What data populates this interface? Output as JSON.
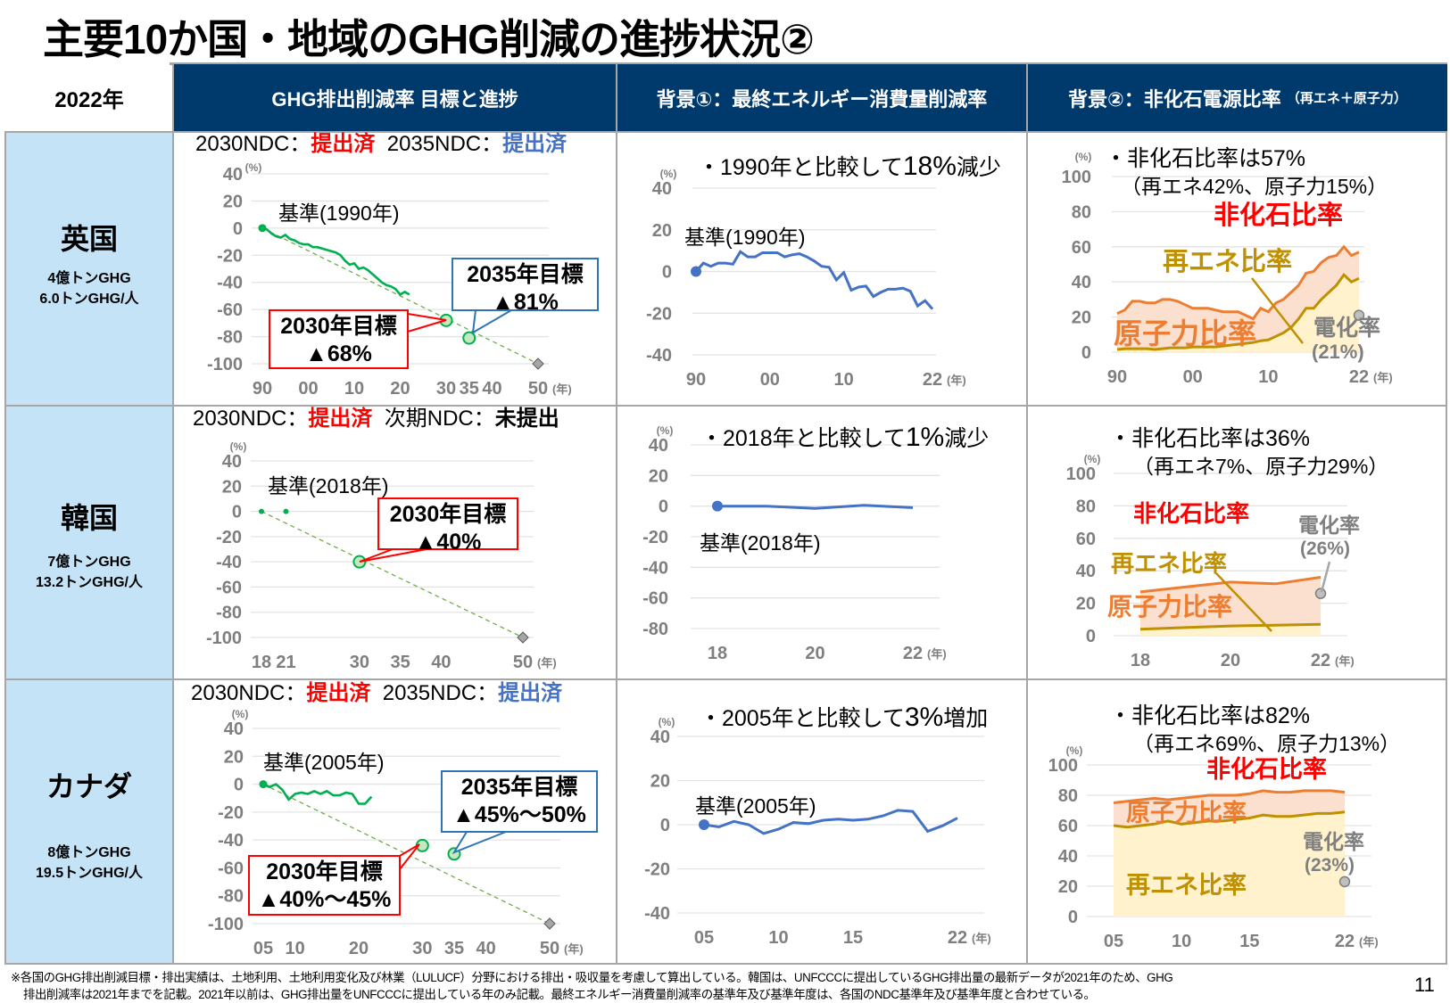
{
  "title": "主要10か国・地域のGHG削減の進捗状況②",
  "header": {
    "year": "2022年",
    "col_ghg": "GHG排出削減率 目標と進捗",
    "col_energy": "背景①：最終エネルギー消費量削減率",
    "col_power": "背景②：非化石電源比率",
    "col_power_note": "（再エネ＋原子力）"
  },
  "countries": [
    {
      "name": "英国",
      "emissions": "4億トンGHG",
      "per_capita": "6.0トンGHG/人",
      "ndc": {
        "label1": "2030NDC：",
        "status1": "提出済",
        "label2": "2035NDC：",
        "status2": "提出済"
      }
    },
    {
      "name": "韓国",
      "emissions": "7億トンGHG",
      "per_capita": "13.2トンGHG/人",
      "ndc": {
        "label1": "2030NDC：",
        "status1": "提出済",
        "label2": "次期NDC：",
        "status2": "未提出"
      }
    },
    {
      "name": "カナダ",
      "emissions": "8億トンGHG",
      "per_capita": "19.5トンGHG/人",
      "ndc": {
        "label1": "2030NDC：",
        "status1": "提出済",
        "label2": "2035NDC：",
        "status2": "提出済"
      }
    }
  ],
  "colors": {
    "header": "#003a6c",
    "country_bg": "#c5e3f7",
    "ghg_line": "#00b050",
    "energy_line": "#4472c4",
    "nonfossil": "#ed7d31",
    "renewable": "#bf9000",
    "nonfossil_label": "#ff0000",
    "status_submitted_2030": "#ff0000",
    "status_submitted_2035": "#4472c4"
  },
  "chart_data": [
    {
      "id": "uk_ghg",
      "type": "line",
      "ylabel": "(%)",
      "x_unit": "(年)",
      "xlim": [
        1990,
        2050
      ],
      "ylim": [
        -100,
        40
      ],
      "yticks": [
        40,
        20,
        0,
        -20,
        -40,
        -60,
        -80,
        -100
      ],
      "x_ticks": [
        [
          1990,
          "90"
        ],
        [
          2000,
          "00"
        ],
        [
          2010,
          "10"
        ],
        [
          2020,
          "20"
        ],
        [
          2030,
          "30"
        ],
        [
          2035,
          "35"
        ],
        [
          2040,
          "40"
        ],
        [
          2050,
          "50"
        ]
      ],
      "baseline_label": "基準(1990年)",
      "series": [
        {
          "mode": "line",
          "values": [
            [
              1990,
              0
            ],
            [
              1991,
              -1
            ],
            [
              1992,
              -4
            ],
            [
              1993,
              -6
            ],
            [
              1994,
              -7
            ],
            [
              1995,
              -5
            ],
            [
              1996,
              -8
            ],
            [
              1997,
              -9
            ],
            [
              1998,
              -11
            ],
            [
              1999,
              -12
            ],
            [
              2000,
              -12
            ],
            [
              2001,
              -14
            ],
            [
              2002,
              -14
            ],
            [
              2003,
              -15
            ],
            [
              2004,
              -16
            ],
            [
              2005,
              -17
            ],
            [
              2006,
              -18
            ],
            [
              2007,
              -20
            ],
            [
              2008,
              -24
            ],
            [
              2009,
              -27
            ],
            [
              2010,
              -26
            ],
            [
              2011,
              -30
            ],
            [
              2012,
              -29
            ],
            [
              2013,
              -31
            ],
            [
              2014,
              -34
            ],
            [
              2015,
              -37
            ],
            [
              2016,
              -40
            ],
            [
              2017,
              -42
            ],
            [
              2018,
              -43
            ],
            [
              2019,
              -45
            ],
            [
              2020,
              -49
            ],
            [
              2021,
              -47
            ],
            [
              2022,
              -49
            ]
          ]
        }
      ],
      "pathway": [
        [
          1990,
          0
        ],
        [
          2050,
          -100
        ]
      ],
      "targets": [
        {
          "year": 2030,
          "value": -68,
          "label_title": "2030年目標",
          "label_value": "▲68%"
        },
        {
          "year": 2035,
          "value": -81,
          "label_title": "2035年目標",
          "label_value": "▲81%"
        }
      ],
      "endpoint": [
        2050,
        -100
      ]
    },
    {
      "id": "kr_ghg",
      "type": "line",
      "ylabel": "(%)",
      "x_unit": "(年)",
      "xlim": [
        2018,
        2050
      ],
      "ylim": [
        -100,
        40
      ],
      "yticks": [
        40,
        20,
        0,
        -20,
        -40,
        -60,
        -80,
        -100
      ],
      "x_ticks": [
        [
          2018,
          "18"
        ],
        [
          2021,
          "21"
        ],
        [
          2030,
          "30"
        ],
        [
          2035,
          "35"
        ],
        [
          2040,
          "40"
        ],
        [
          2050,
          "50"
        ]
      ],
      "baseline_label": "基準(2018年)",
      "series": [
        {
          "mode": "points",
          "values": [
            [
              2018,
              0
            ],
            [
              2021,
              0
            ]
          ]
        }
      ],
      "pathway": [
        [
          2018,
          0
        ],
        [
          2050,
          -100
        ]
      ],
      "targets": [
        {
          "year": 2030,
          "value": -40,
          "label_title": "2030年目標",
          "label_value": "▲40%"
        }
      ],
      "endpoint": [
        2050,
        -100
      ]
    },
    {
      "id": "ca_ghg",
      "type": "line",
      "ylabel": "(%)",
      "x_unit": "(年)",
      "xlim": [
        2005,
        2050
      ],
      "ylim": [
        -100,
        40
      ],
      "yticks": [
        40,
        20,
        0,
        -20,
        -40,
        -60,
        -80,
        -100
      ],
      "x_ticks": [
        [
          2005,
          "05"
        ],
        [
          2010,
          "10"
        ],
        [
          2020,
          "20"
        ],
        [
          2030,
          "30"
        ],
        [
          2035,
          "35"
        ],
        [
          2040,
          "40"
        ],
        [
          2050,
          "50"
        ]
      ],
      "baseline_label": "基準(2005年)",
      "series": [
        {
          "mode": "line",
          "values": [
            [
              2005,
              0
            ],
            [
              2006,
              -2
            ],
            [
              2007,
              0
            ],
            [
              2008,
              -4
            ],
            [
              2009,
              -11
            ],
            [
              2010,
              -7
            ],
            [
              2011,
              -6
            ],
            [
              2012,
              -7
            ],
            [
              2013,
              -5
            ],
            [
              2014,
              -7
            ],
            [
              2015,
              -5
            ],
            [
              2016,
              -8
            ],
            [
              2017,
              -8
            ],
            [
              2018,
              -6
            ],
            [
              2019,
              -7
            ],
            [
              2020,
              -14
            ],
            [
              2021,
              -14
            ],
            [
              2022,
              -9
            ]
          ]
        }
      ],
      "pathway": [
        [
          2005,
          0
        ],
        [
          2050,
          -100
        ]
      ],
      "targets": [
        {
          "year": 2030,
          "value": -44,
          "label_title": "2030年目標",
          "label_value": "▲40%～45%"
        },
        {
          "year": 2035,
          "value": -50,
          "label_title": "2035年目標",
          "label_value": "▲45%～50%"
        }
      ],
      "endpoint": [
        2050,
        -100
      ]
    },
    {
      "id": "uk_energy",
      "type": "line",
      "ylabel": "(%)",
      "x_unit": "(年)",
      "xlim": [
        1990,
        2022
      ],
      "ylim": [
        -40,
        40
      ],
      "yticks": [
        40,
        20,
        0,
        -20,
        -40
      ],
      "x_ticks": [
        [
          1990,
          "90"
        ],
        [
          2000,
          "00"
        ],
        [
          2010,
          "10"
        ],
        [
          2022,
          "22"
        ]
      ],
      "summary_pre": "・1990年と比較して",
      "summary_value": "18%",
      "summary_post": "減少",
      "baseline_label": "基準(1990年)",
      "x": [
        1990,
        1991,
        1992,
        1993,
        1994,
        1995,
        1996,
        1997,
        1998,
        1999,
        2000,
        2001,
        2002,
        2003,
        2004,
        2005,
        2006,
        2007,
        2008,
        2009,
        2010,
        2011,
        2012,
        2013,
        2014,
        2015,
        2016,
        2017,
        2018,
        2019,
        2020,
        2021,
        2022
      ],
      "values": [
        0,
        4,
        2.5,
        4,
        4,
        3.5,
        9.5,
        7,
        7,
        9,
        9,
        9,
        7,
        8,
        8.5,
        7,
        5,
        2.5,
        2,
        -4,
        -0.5,
        -9,
        -7.5,
        -7,
        -12,
        -10,
        -8.5,
        -8.5,
        -8,
        -9.5,
        -16.5,
        -14,
        -18
      ]
    },
    {
      "id": "kr_energy",
      "type": "line",
      "ylabel": "(%)",
      "x_unit": "(年)",
      "xlim": [
        2018,
        2022
      ],
      "ylim": [
        -80,
        40
      ],
      "yticks": [
        40,
        20,
        0,
        -20,
        -40,
        -60,
        -80
      ],
      "x_ticks": [
        [
          2018,
          "18"
        ],
        [
          2020,
          "20"
        ],
        [
          2022,
          "22"
        ]
      ],
      "summary_pre": "・2018年と比較して",
      "summary_value": "1%",
      "summary_post": "減少",
      "baseline_label": "基準(2018年)",
      "x": [
        2018,
        2019,
        2020,
        2021,
        2022
      ],
      "values": [
        0,
        0,
        -1.5,
        0.5,
        -1
      ]
    },
    {
      "id": "ca_energy",
      "type": "line",
      "ylabel": "(%)",
      "x_unit": "(年)",
      "xlim": [
        2005,
        2022
      ],
      "ylim": [
        -40,
        40
      ],
      "yticks": [
        40,
        20,
        0,
        -20,
        -40
      ],
      "x_ticks": [
        [
          2005,
          "05"
        ],
        [
          2010,
          "10"
        ],
        [
          2015,
          "15"
        ],
        [
          2022,
          "22"
        ]
      ],
      "summary_pre": "・2005年と比較して",
      "summary_value": "3%",
      "summary_post": "増加",
      "baseline_label": "基準(2005年)",
      "x": [
        2005,
        2006,
        2007,
        2008,
        2009,
        2010,
        2011,
        2012,
        2013,
        2014,
        2015,
        2016,
        2017,
        2018,
        2019,
        2020,
        2021,
        2022
      ],
      "values": [
        0,
        -1,
        1.5,
        0,
        -4,
        -2,
        1,
        0.5,
        2,
        2.5,
        2,
        2.5,
        4,
        6.5,
        6,
        -3,
        -0.5,
        3
      ]
    },
    {
      "id": "uk_power",
      "type": "area",
      "ylabel": "(%)",
      "x_unit": "(年)",
      "xlim": [
        1990,
        2022
      ],
      "ylim": [
        0,
        100
      ],
      "yticks": [
        100,
        80,
        60,
        40,
        20,
        0
      ],
      "x_ticks": [
        [
          1990,
          "90"
        ],
        [
          2000,
          "00"
        ],
        [
          2010,
          "10"
        ],
        [
          2022,
          "22"
        ]
      ],
      "summary": "・非化石比率は57%",
      "summary_detail": "（再エネ42%、原子力15%）",
      "x": [
        1990,
        1991,
        1992,
        1993,
        1994,
        1995,
        1996,
        1997,
        1998,
        1999,
        2000,
        2001,
        2002,
        2003,
        2004,
        2005,
        2006,
        2007,
        2008,
        2009,
        2010,
        2011,
        2012,
        2013,
        2014,
        2015,
        2016,
        2017,
        2018,
        2019,
        2020,
        2021,
        2022
      ],
      "series": [
        {
          "name": "非化石比率",
          "values": [
            22,
            24,
            29,
            29,
            28,
            28,
            30,
            30,
            29,
            27,
            25,
            25,
            25,
            24,
            23,
            23,
            23,
            21,
            19,
            25,
            23,
            28,
            30,
            34,
            38,
            45,
            46,
            51,
            54,
            55,
            60,
            55,
            57
          ]
        },
        {
          "name": "再エネ比率",
          "values": [
            1.5,
            2,
            2,
            2,
            2,
            1.5,
            2,
            2.5,
            2.5,
            2.5,
            3,
            3,
            3,
            3,
            3.5,
            4,
            4.5,
            5,
            5.5,
            6.5,
            7,
            9,
            11,
            14,
            19,
            25,
            25,
            30,
            34,
            38,
            44,
            40,
            42
          ]
        }
      ],
      "nuclear_label": "原子力比率",
      "electrification": {
        "label": "電化率",
        "value_label": "(21%)",
        "year": 2022,
        "value": 21
      }
    },
    {
      "id": "kr_power",
      "type": "area",
      "ylabel": "(%)",
      "x_unit": "(年)",
      "xlim": [
        2018,
        2022
      ],
      "ylim": [
        0,
        100
      ],
      "yticks": [
        100,
        80,
        60,
        40,
        20,
        0
      ],
      "x_ticks": [
        [
          2018,
          "18"
        ],
        [
          2020,
          "20"
        ],
        [
          2022,
          "22"
        ]
      ],
      "summary": "・非化石比率は36%",
      "summary_detail": "（再エネ7%、原子力29%）",
      "x": [
        2018,
        2019,
        2020,
        2021,
        2022
      ],
      "series": [
        {
          "name": "非化石比率",
          "values": [
            27,
            30,
            33,
            32,
            36
          ]
        },
        {
          "name": "再エネ比率",
          "values": [
            4,
            5,
            6,
            6.5,
            7
          ]
        }
      ],
      "nuclear_label": "原子力比率",
      "electrification": {
        "label": "電化率",
        "value_label": "(26%)",
        "year": 2022,
        "value": 26
      }
    },
    {
      "id": "ca_power",
      "type": "area",
      "ylabel": "(%)",
      "x_unit": "(年)",
      "xlim": [
        2005,
        2022
      ],
      "ylim": [
        0,
        100
      ],
      "yticks": [
        100,
        80,
        60,
        40,
        20,
        0
      ],
      "x_ticks": [
        [
          2005,
          "05"
        ],
        [
          2010,
          "10"
        ],
        [
          2015,
          "15"
        ],
        [
          2022,
          "22"
        ]
      ],
      "summary": "・非化石比率は82%",
      "summary_detail": "（再エネ69%、原子力13%）",
      "x": [
        2005,
        2006,
        2007,
        2008,
        2009,
        2010,
        2011,
        2012,
        2013,
        2014,
        2015,
        2016,
        2017,
        2018,
        2019,
        2020,
        2021,
        2022
      ],
      "series": [
        {
          "name": "非化石比率",
          "values": [
            75,
            76,
            77,
            78,
            77,
            78,
            79,
            80,
            80,
            80,
            81,
            83,
            82,
            82,
            83,
            83,
            83,
            82
          ]
        },
        {
          "name": "再エネ比率",
          "values": [
            60,
            59,
            60,
            61,
            63,
            61,
            62,
            63,
            63,
            64,
            65,
            67,
            66,
            66,
            67,
            68,
            68,
            69
          ]
        }
      ],
      "nuclear_label": "原子力比率",
      "electrification": {
        "label": "電化率",
        "value_label": "(23%)",
        "year": 2022,
        "value": 23
      }
    }
  ],
  "footer": {
    "note_line1": "※各国のGHG排出削減目標・排出実績は、土地利用、土地利用変化及び林業（LULUCF）分野における排出・吸収量を考慮して算出している。韓国は、UNFCCCに提出しているGHG排出量の最新データが2021年のため、GHG",
    "note_line2": "排出削減率は2021年までを記載。2021年以前は、GHG排出量をUNFCCCに提出している年のみ記載。最終エネルギー消費量削減率の基準年及び基準年度は、各国のNDC基準年及び基準年度と合わせている。",
    "page": "11"
  }
}
